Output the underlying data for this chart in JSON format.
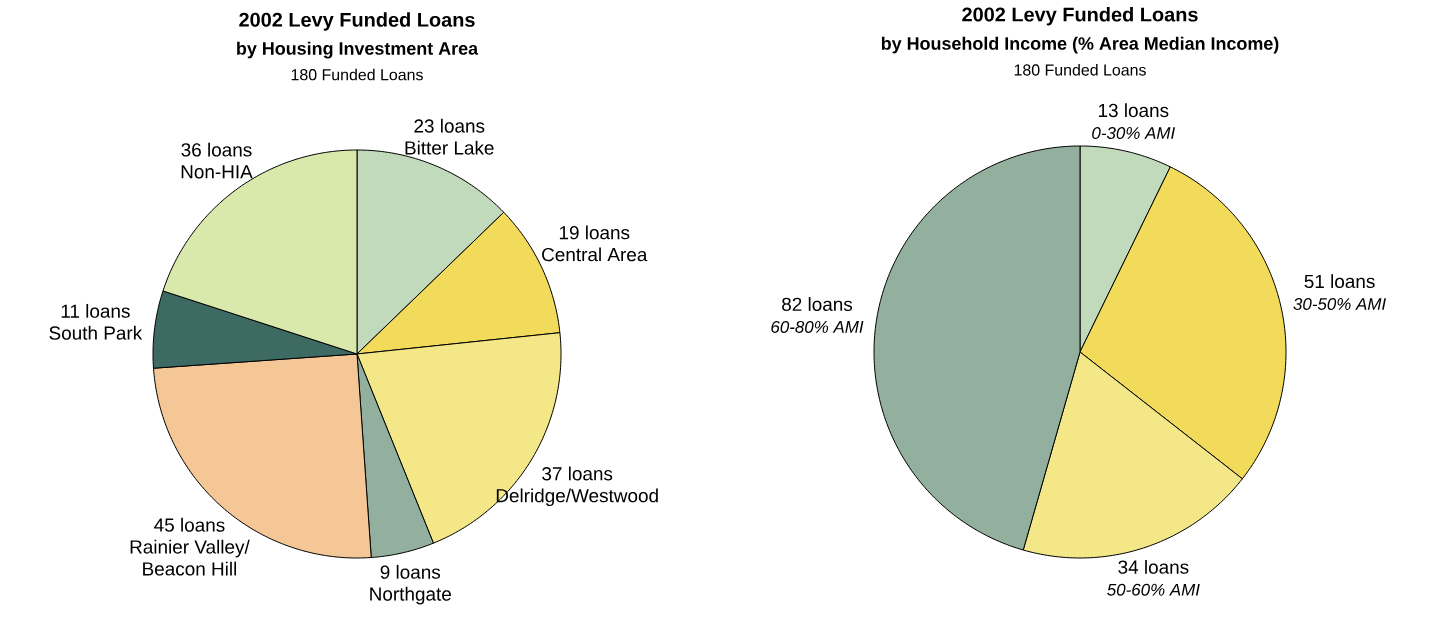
{
  "chart_data": [
    {
      "type": "pie",
      "title": "2002 Levy Funded Loans",
      "subtitle": "by Housing Investment Area",
      "annotations": [
        "180 Funded Loans"
      ],
      "categories": [
        "Bitter Lake",
        "Central Area",
        "Delridge/Westwood",
        "Northgate",
        "Rainier Valley/ Beacon Hill",
        "South Park",
        "Non-HIA"
      ],
      "values": [
        23,
        19,
        37,
        9,
        45,
        11,
        36
      ],
      "value_labels": [
        "23 loans",
        "19 loans",
        "37 loans",
        "9 loans",
        "45 loans",
        "11 loans",
        "36 loans"
      ],
      "colors": [
        "#c2dabc",
        "#f2db5a",
        "#f3e788",
        "#93b09e",
        "#f5c797",
        "#3d6a62",
        "#d9e9ac"
      ]
    },
    {
      "type": "pie",
      "title": "2002 Levy Funded Loans",
      "subtitle": "by Household Income (% Area Median Income)",
      "annotations": [
        "180 Funded Loans"
      ],
      "categories": [
        "0-30% AMI",
        "30-50% AMI",
        "50-60% AMI",
        "60-80% AMI"
      ],
      "values": [
        13,
        51,
        34,
        82
      ],
      "value_labels": [
        "13 loans",
        "51 loans",
        "34 loans",
        "82 loans"
      ],
      "colors": [
        "#c2dabc",
        "#f2db5a",
        "#f3e788",
        "#93b09e"
      ]
    }
  ]
}
